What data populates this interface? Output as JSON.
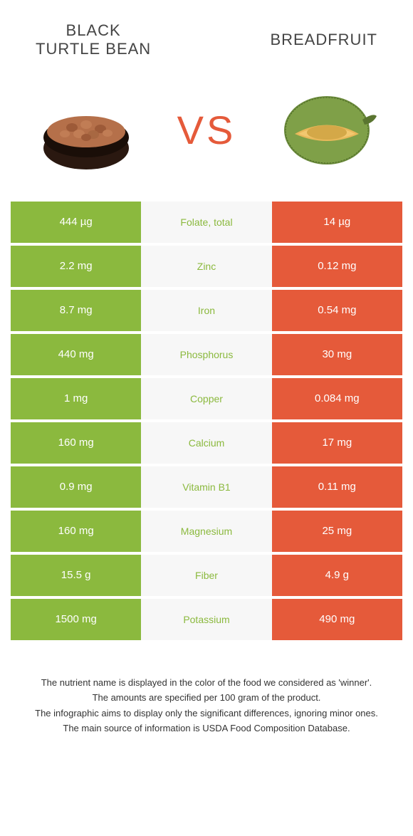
{
  "colors": {
    "left": "#8bb93e",
    "right": "#e55a3a",
    "mid_bg": "#f7f7f7",
    "vs": "#e55a3a",
    "title": "#444444"
  },
  "header": {
    "left_title": "BLACK\nTURTLE BEAN",
    "right_title": "BREADFRUIT",
    "vs": "VS"
  },
  "rows": [
    {
      "left": "444 µg",
      "name": "Folate, total",
      "right": "14 µg",
      "winner": "left"
    },
    {
      "left": "2.2 mg",
      "name": "Zinc",
      "right": "0.12 mg",
      "winner": "left"
    },
    {
      "left": "8.7 mg",
      "name": "Iron",
      "right": "0.54 mg",
      "winner": "left"
    },
    {
      "left": "440 mg",
      "name": "Phosphorus",
      "right": "30 mg",
      "winner": "left"
    },
    {
      "left": "1 mg",
      "name": "Copper",
      "right": "0.084 mg",
      "winner": "left"
    },
    {
      "left": "160 mg",
      "name": "Calcium",
      "right": "17 mg",
      "winner": "left"
    },
    {
      "left": "0.9 mg",
      "name": "Vitamin B1",
      "right": "0.11 mg",
      "winner": "left"
    },
    {
      "left": "160 mg",
      "name": "Magnesium",
      "right": "25 mg",
      "winner": "left"
    },
    {
      "left": "15.5 g",
      "name": "Fiber",
      "right": "4.9 g",
      "winner": "left"
    },
    {
      "left": "1500 mg",
      "name": "Potassium",
      "right": "490 mg",
      "winner": "left"
    }
  ],
  "footnotes": [
    "The nutrient name is displayed in the color of the food we considered as 'winner'.",
    "The amounts are specified per 100 gram of the product.",
    "The infographic aims to display only the significant differences, ignoring minor ones.",
    "The main source of information is USDA Food Composition Database."
  ]
}
